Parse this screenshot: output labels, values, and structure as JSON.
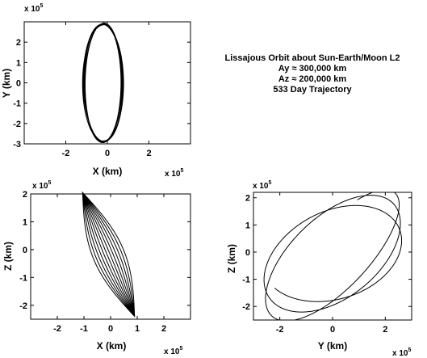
{
  "annotation": {
    "lines": [
      "Lissajous Orbit about Sun-Earth/Moon L2",
      "Ay ≈ 300,000 km",
      "Az ≈ 200,000 km",
      "533 Day Trajectory"
    ]
  },
  "chart_data": [
    {
      "type": "line",
      "id": "xy",
      "xlabel": "X (km)",
      "ylabel": "Y (km)",
      "x_multiplier": "x 10",
      "x_multiplier_exp": "5",
      "y_multiplier": "x 10",
      "y_multiplier_exp": "5",
      "xlim": [
        -4,
        4
      ],
      "ylim": [
        -3,
        3
      ],
      "xticks": [
        -2,
        0,
        2
      ],
      "yticks": [
        -3,
        -2,
        -1,
        0,
        1,
        2
      ],
      "grid": false,
      "trajectory": {
        "loops": 6,
        "center_x": -0.2,
        "amp_x": [
          0.85,
          1.0
        ],
        "amp_y": [
          2.95,
          2.85
        ]
      }
    },
    {
      "type": "line",
      "id": "xz",
      "xlabel": "X (km)",
      "ylabel": "Z (km)",
      "x_multiplier": "x 10",
      "x_multiplier_exp": "5",
      "y_multiplier": "x 10",
      "y_multiplier_exp": "5",
      "xlim": [
        -3,
        3
      ],
      "ylim": [
        -2.5,
        2
      ],
      "xticks": [
        -2,
        -1,
        0,
        1,
        2
      ],
      "yticks": [
        -2,
        -1,
        0,
        1,
        2
      ],
      "grid": false,
      "trajectory": {
        "loops": 6,
        "start": [
          -1.05,
          2.05
        ],
        "end": [
          0.9,
          -2.4
        ],
        "bulge": [
          0.05,
          0.55
        ]
      }
    },
    {
      "type": "line",
      "id": "yz",
      "xlabel": "Y (km)",
      "ylabel": "Z (km)",
      "x_multiplier": "x 10",
      "x_multiplier_exp": "5",
      "y_multiplier": "x 10",
      "y_multiplier_exp": "5",
      "xlim": [
        -3,
        3
      ],
      "ylim": [
        -2.5,
        2.2
      ],
      "xticks": [
        -2,
        0,
        2
      ],
      "yticks": [
        -2,
        -1,
        0,
        1,
        2
      ],
      "grid": false,
      "trajectory": {
        "turns": 2.6,
        "a": 2.9,
        "b": 2.0,
        "tilt_deg": 12,
        "start_y": 0.2,
        "start_z": -1.2
      }
    }
  ]
}
